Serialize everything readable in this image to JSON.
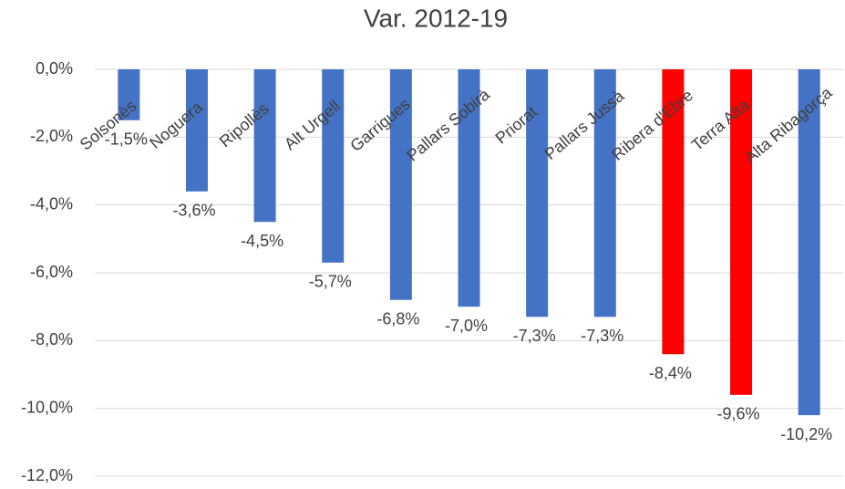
{
  "chart_data": {
    "type": "bar",
    "title": "Var. 2012-19",
    "categories": [
      "Solsonès",
      "Noguera",
      "Ripollès",
      "Alt Urgell",
      "Garrigues",
      "Pallars Sobirà",
      "Priorat",
      "Pallars Jussà",
      "Ribera d'Ebre",
      "Terra Alta",
      "Alta Ribagorça"
    ],
    "values": [
      -1.5,
      -3.6,
      -4.5,
      -5.7,
      -6.8,
      -7.0,
      -7.3,
      -7.3,
      -8.4,
      -9.6,
      -10.2
    ],
    "value_labels": [
      "-1,5%",
      "-3,6%",
      "-4,5%",
      "-5,7%",
      "-6,8%",
      "-7,0%",
      "-7,3%",
      "-7,3%",
      "-8,4%",
      "-9,6%",
      "-10,2%"
    ],
    "colors": [
      "#4472c4",
      "#4472c4",
      "#4472c4",
      "#4472c4",
      "#4472c4",
      "#4472c4",
      "#4472c4",
      "#4472c4",
      "#ff0000",
      "#ff0000",
      "#4472c4"
    ],
    "ylim": [
      -12,
      0
    ],
    "yticks": [
      {
        "value": 0,
        "label": "0,0%"
      },
      {
        "value": -2,
        "label": "-2,0%"
      },
      {
        "value": -4,
        "label": "-4,0%"
      },
      {
        "value": -6,
        "label": "-6,0%"
      },
      {
        "value": -8,
        "label": "-8,0%"
      },
      {
        "value": -10,
        "label": "-10,0%"
      },
      {
        "value": -12,
        "label": "-12,0%"
      }
    ],
    "grid": true
  }
}
